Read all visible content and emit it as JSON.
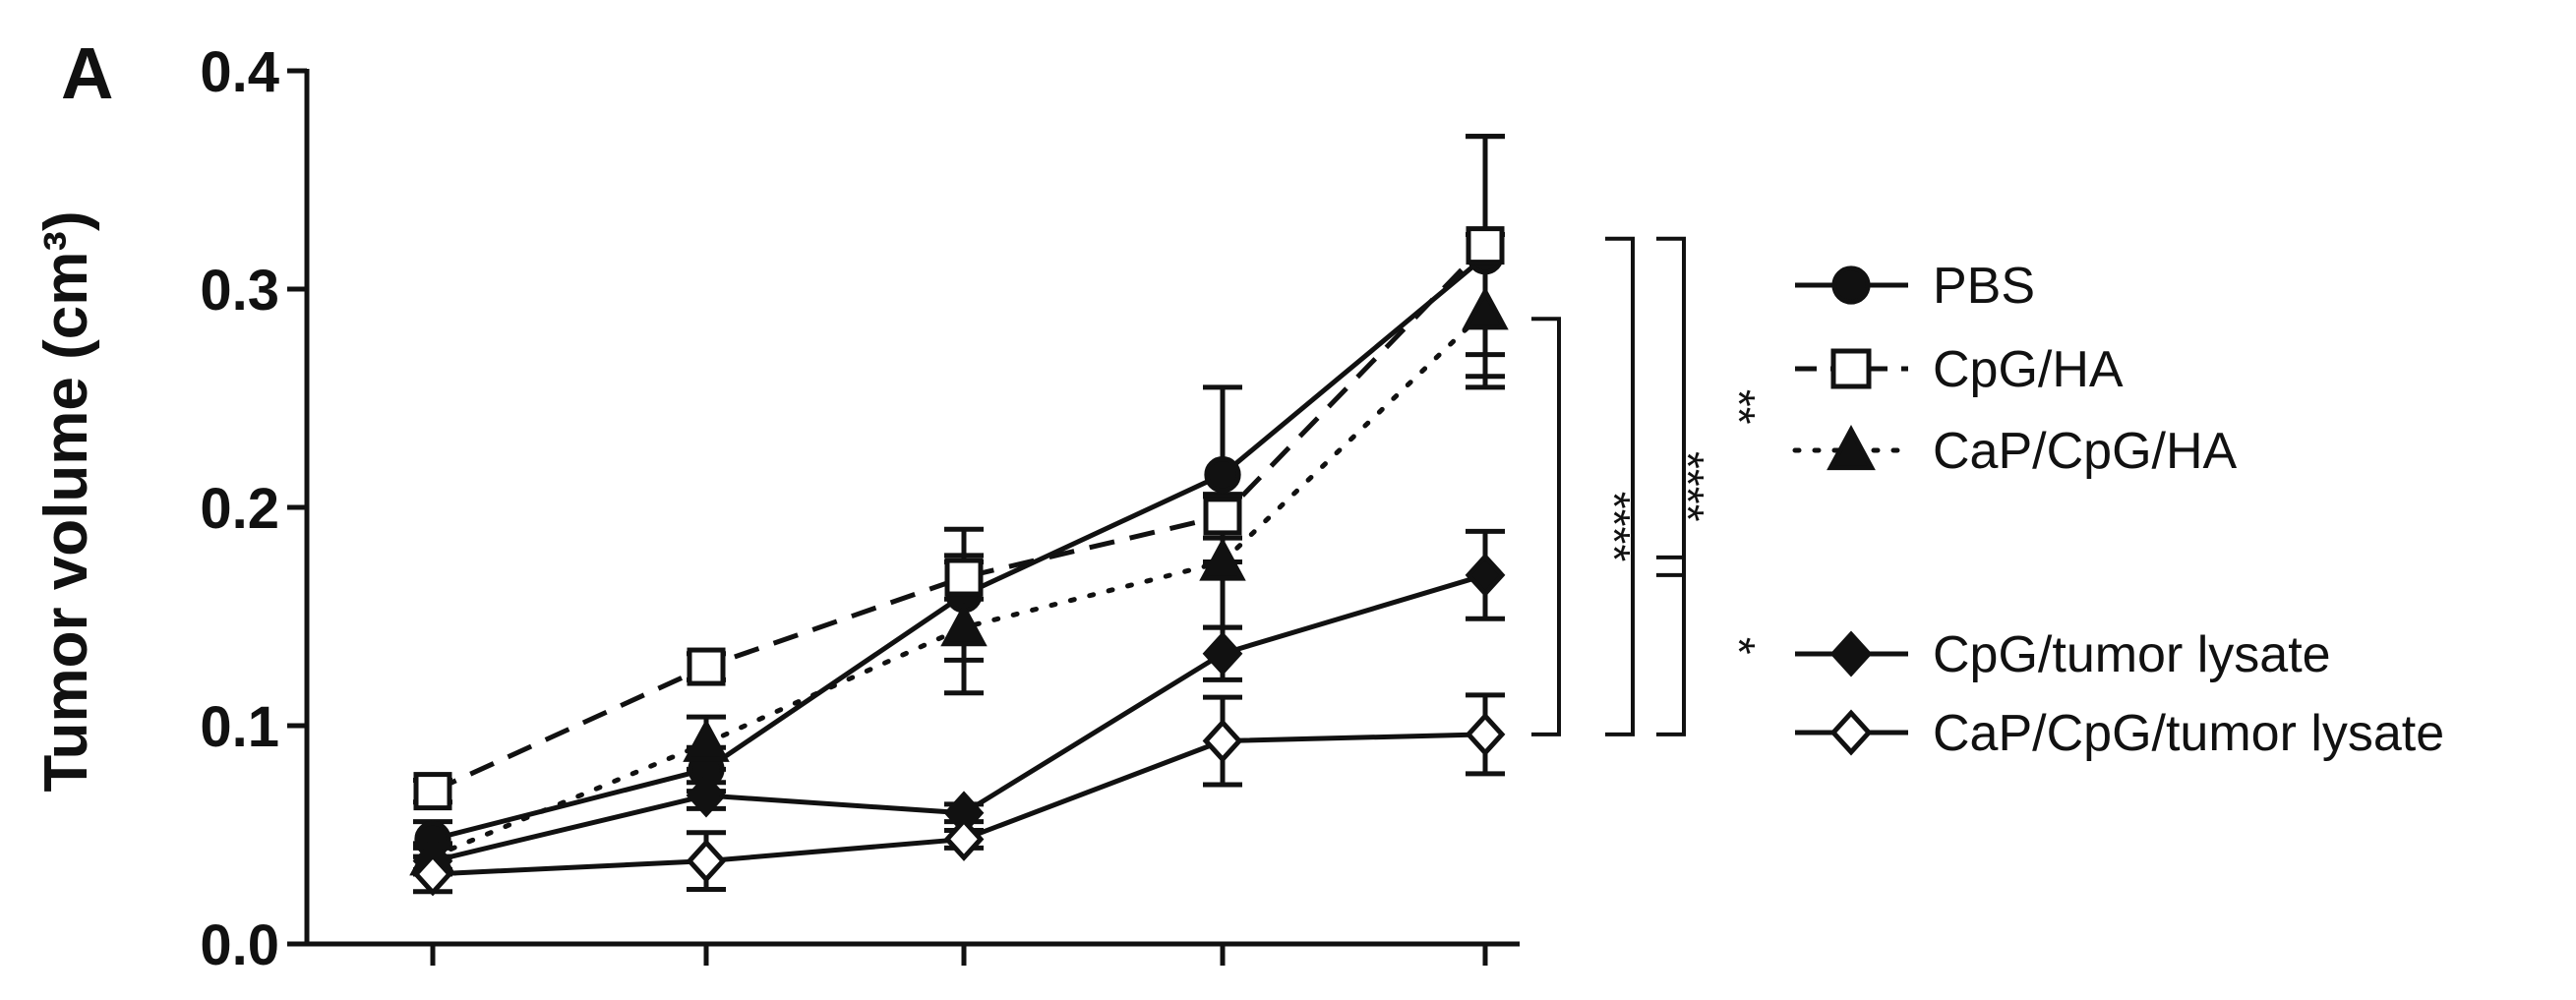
{
  "panel_label": "A",
  "chart_data": {
    "type": "line",
    "title": "",
    "xlabel": "",
    "ylabel": "Tumor volume (cm³)",
    "ylim": [
      0,
      0.4
    ],
    "yticks": [
      "0.0",
      "0.1",
      "0.2",
      "0.3",
      "0.4"
    ],
    "x": [
      1,
      2,
      3,
      4,
      5
    ],
    "xtick_labels": [
      "",
      "",
      "",
      "",
      ""
    ],
    "grid": false,
    "legend_position": "right",
    "series": [
      {
        "name": "PBS",
        "marker": "circle-filled",
        "line": "solid",
        "values": [
          0.048,
          0.08,
          0.16,
          0.215,
          0.315
        ],
        "errors": [
          0.008,
          0.01,
          0.03,
          0.04,
          0.055
        ]
      },
      {
        "name": "CpG/HA",
        "marker": "square-open",
        "line": "dashed",
        "values": [
          0.07,
          0.127,
          0.168,
          0.196,
          0.32
        ],
        "errors": [
          0.005,
          0.006,
          0.01,
          0.01,
          0.05
        ]
      },
      {
        "name": "CaP/CpG/HA",
        "marker": "triangle-filled",
        "line": "dotted",
        "values": [
          0.04,
          0.092,
          0.145,
          0.175,
          0.29
        ],
        "errors": [
          0.006,
          0.012,
          0.03,
          0.03,
          0.035
        ]
      },
      {
        "name": "CpG/tumor lysate",
        "marker": "diamond-filled",
        "line": "solid",
        "values": [
          0.038,
          0.068,
          0.06,
          0.133,
          0.169
        ],
        "errors": [
          0.006,
          0.006,
          0.004,
          0.012,
          0.02
        ]
      },
      {
        "name": "CaP/CpG/tumor lysate",
        "marker": "diamond-open",
        "line": "solid",
        "values": [
          0.032,
          0.038,
          0.048,
          0.093,
          0.096
        ],
        "errors": [
          0.008,
          0.013,
          0.004,
          0.02,
          0.018
        ]
      }
    ],
    "annotations": [
      {
        "text": "****",
        "between": [
          "CaP/CpG/HA",
          "CaP/CpG/tumor lysate"
        ]
      },
      {
        "text": "****",
        "between": [
          "PBS",
          "CaP/CpG/tumor lysate"
        ]
      },
      {
        "text": "**",
        "between": [
          "PBS",
          "CpG/tumor lysate"
        ]
      },
      {
        "text": "*",
        "between": [
          "CpG/tumor lysate",
          "CaP/CpG/tumor lysate"
        ]
      }
    ]
  }
}
